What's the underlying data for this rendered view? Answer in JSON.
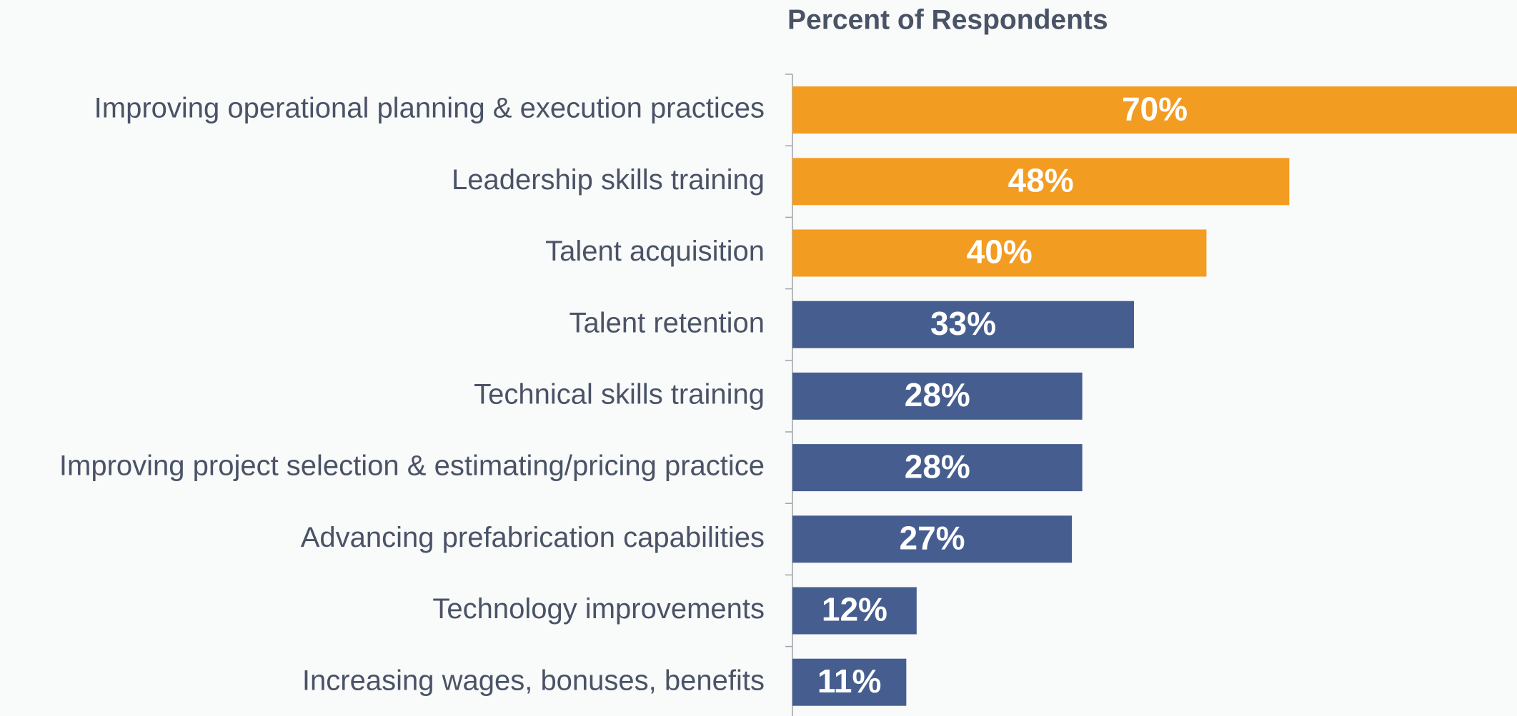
{
  "chart_data": {
    "type": "hbar",
    "title": "Percent of Respondents",
    "categories": [
      "Improving operational planning & execution practices",
      "Leadership skills training",
      "Talent acquisition",
      "Talent retention",
      "Technical skills training",
      "Improving project selection & estimating/pricing practice",
      "Advancing prefabrication capabilities",
      "Technology improvements",
      "Increasing wages, bonuses, benefits"
    ],
    "values": [
      70,
      48,
      40,
      33,
      28,
      28,
      27,
      12,
      11
    ],
    "value_labels": [
      "70%",
      "48%",
      "40%",
      "33%",
      "28%",
      "28%",
      "27%",
      "12%",
      "11%"
    ],
    "colors": [
      "#f39c22",
      "#f39c22",
      "#f39c22",
      "#465e8f",
      "#465e8f",
      "#465e8f",
      "#465e8f",
      "#465e8f",
      "#465e8f"
    ],
    "xlim": [
      0,
      70
    ]
  }
}
